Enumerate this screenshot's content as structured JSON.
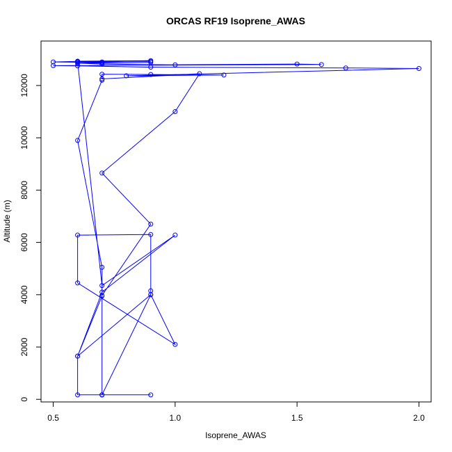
{
  "chart_data": {
    "type": "line",
    "title": "ORCAS RF19 Isoprene_AWAS",
    "xlabel": "Isoprene_AWAS",
    "ylabel": "Altitude (m)",
    "xlim": [
      0.45,
      2.05
    ],
    "ylim": [
      -100,
      13700
    ],
    "x_ticks": [
      0.5,
      1.0,
      1.5,
      2.0
    ],
    "x_tick_labels": [
      "0.5",
      "1.0",
      "1.5",
      "2.0"
    ],
    "y_ticks": [
      0,
      2000,
      4000,
      6000,
      8000,
      10000,
      12000
    ],
    "y_tick_labels": [
      "0",
      "2000",
      "4000",
      "6000",
      "8000",
      "10000",
      "12000"
    ],
    "grid": false,
    "legend": "none",
    "series": [
      {
        "color": "#0000ff",
        "marker": "open-circle",
        "points": [
          [
            0.7,
            170
          ],
          [
            0.9,
            170
          ],
          [
            0.7,
            170
          ],
          [
            0.6,
            170
          ],
          [
            0.6,
            1650
          ],
          [
            0.9,
            4000
          ],
          [
            0.9,
            4150
          ],
          [
            0.9,
            6300
          ],
          [
            0.6,
            6280
          ],
          [
            0.6,
            4450
          ],
          [
            1.0,
            2100
          ],
          [
            0.9,
            4000
          ],
          [
            0.7,
            170
          ],
          [
            0.7,
            3970
          ],
          [
            0.9,
            6700
          ],
          [
            0.7,
            8650
          ],
          [
            1.0,
            11000
          ],
          [
            1.1,
            12450
          ],
          [
            0.7,
            12250
          ],
          [
            0.7,
            12430
          ],
          [
            0.9,
            12420
          ],
          [
            1.2,
            12400
          ],
          [
            0.8,
            12370
          ],
          [
            2.0,
            12650
          ],
          [
            1.7,
            12670
          ],
          [
            0.9,
            12700
          ],
          [
            0.6,
            12750
          ],
          [
            0.5,
            12760
          ],
          [
            1.6,
            12800
          ],
          [
            1.5,
            12820
          ],
          [
            1.0,
            12790
          ],
          [
            0.7,
            12820
          ],
          [
            0.6,
            12850
          ],
          [
            0.9,
            12880
          ],
          [
            0.7,
            12870
          ],
          [
            0.6,
            12890
          ],
          [
            0.5,
            12900
          ],
          [
            0.6,
            12920
          ],
          [
            0.9,
            12920
          ],
          [
            0.6,
            12930
          ],
          [
            0.9,
            12950
          ],
          [
            0.7,
            12900
          ],
          [
            0.6,
            12900
          ],
          [
            0.7,
            4350
          ],
          [
            1.0,
            6280
          ],
          [
            0.7,
            4100
          ],
          [
            0.6,
            1650
          ],
          [
            0.7,
            3950
          ],
          [
            0.7,
            5050
          ],
          [
            0.6,
            9900
          ],
          [
            0.7,
            12200
          ]
        ]
      }
    ]
  }
}
